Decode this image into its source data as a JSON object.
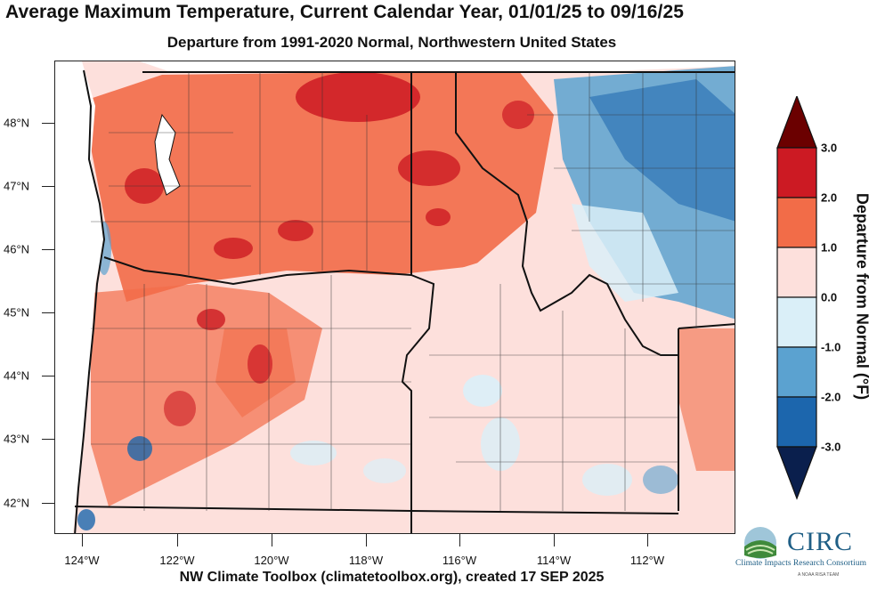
{
  "title": "Average Maximum Temperature, Current Calendar Year, 01/01/25 to 09/16/25",
  "subtitle": "Departure from 1991-2020 Normal, Northwestern United States",
  "credit": "NW Climate Toolbox (climatetoolbox.org), created 17 SEP 2025",
  "x_ticks": [
    "124°W",
    "122°W",
    "120°W",
    "118°W",
    "116°W",
    "114°W",
    "112°W"
  ],
  "y_ticks": [
    "48°N",
    "47°N",
    "46°N",
    "45°N",
    "44°N",
    "43°N",
    "42°N"
  ],
  "colorbar": {
    "label": "Departure from Normal (°F)",
    "ticks": [
      "3.0",
      "2.0",
      "1.0",
      "0.0",
      "-1.0",
      "-2.0",
      "-3.0"
    ],
    "colors": [
      "#6b0000",
      "#cc1a23",
      "#f26c48",
      "#fde0dc",
      "#daeff8",
      "#5ba2d0",
      "#1c66ad",
      "#0a1f4d"
    ]
  },
  "logo": {
    "name": "CIRC",
    "full_name": "Climate Impacts Research Consortium",
    "tagline": "A NOAA RISA TEAM"
  }
}
